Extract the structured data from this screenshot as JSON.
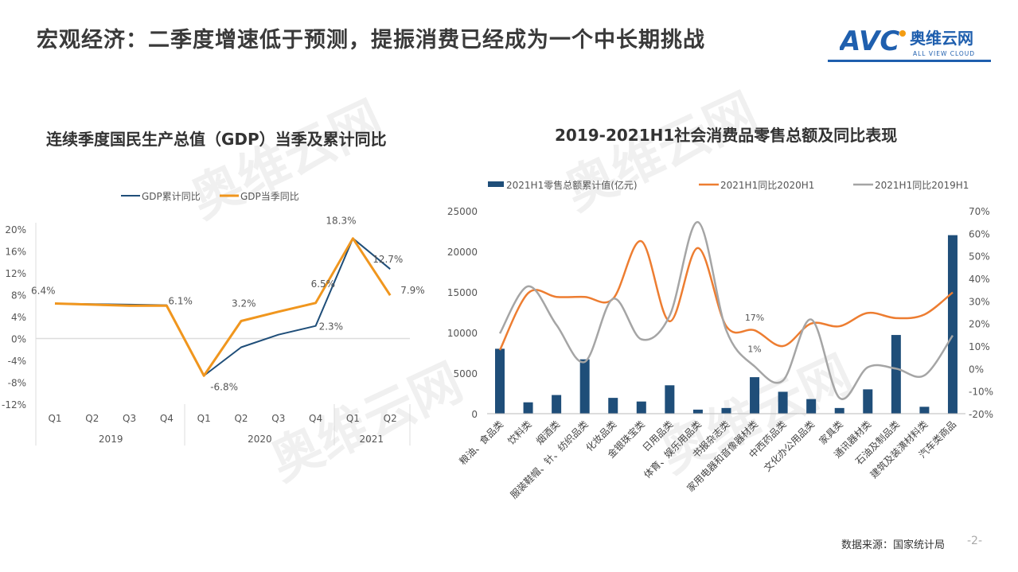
{
  "header": {
    "title": "宏观经济：二季度增速低于预测，提振消费已经成为一个中长期挑战",
    "logo_mark": "AVC",
    "logo_cn": "奥维云网",
    "logo_en": "ALL VIEW CLOUD"
  },
  "footer": {
    "source": "数据来源：国家统计局",
    "page": "-2-"
  },
  "colors": {
    "navy": "#1f4e79",
    "orange_gdp": "#f0961e",
    "orange_line": "#ed7d31",
    "gray_line": "#a5a5a5",
    "brand_blue": "#1f5fae"
  },
  "chart_data": [
    {
      "type": "line",
      "title": "连续季度国民生产总值（GDP）当季及累计同比",
      "categories": [
        "Q1",
        "Q2",
        "Q3",
        "Q4",
        "Q1",
        "Q2",
        "Q3",
        "Q4",
        "Q1",
        "Q2"
      ],
      "groups": [
        {
          "label": "2019",
          "span": 4
        },
        {
          "label": "2020",
          "span": 4
        },
        {
          "label": "2021",
          "span": 2
        }
      ],
      "y_ticks": [
        "20%",
        "16%",
        "12%",
        "8%",
        "4%",
        "0%",
        "-4%",
        "-8%",
        "-12%"
      ],
      "ylim": [
        -12,
        20
      ],
      "legend": "top",
      "series": [
        {
          "name": "GDP累计同比",
          "values": [
            6.4,
            6.3,
            6.2,
            6.1,
            -6.8,
            -1.6,
            0.7,
            2.3,
            18.3,
            12.7
          ]
        },
        {
          "name": "GDP当季同比",
          "values": [
            6.4,
            6.2,
            6.0,
            6.0,
            -6.8,
            3.2,
            4.9,
            6.5,
            18.3,
            7.9
          ]
        }
      ],
      "data_labels": [
        {
          "index": 0,
          "text": "6.4%"
        },
        {
          "index": 3,
          "text": "6.1%"
        },
        {
          "index": 4,
          "text": "-6.8%"
        },
        {
          "index": 5,
          "text": "3.2%"
        },
        {
          "index": 7,
          "text": "6.5%"
        },
        {
          "index": 7,
          "text": "2.3%"
        },
        {
          "index": 8,
          "text": "18.3%"
        },
        {
          "index": 9,
          "text": "12.7%"
        },
        {
          "index": 9,
          "text": "7.9%"
        }
      ]
    },
    {
      "type": "bar+line",
      "title": "2019-2021H1社会消费品零售总额及同比表现",
      "categories": [
        "粮油、食品类",
        "饮料类",
        "烟酒类",
        "服装鞋帽、针、纺织品类",
        "化妆品类",
        "金银珠宝类",
        "日用品类",
        "体育、娱乐用品类",
        "书报杂志类",
        "家用电器和音像器材类",
        "中西药品类",
        "文化办公用品类",
        "家具类",
        "通讯器材类",
        "石油及制品类",
        "建筑及装潢材料类",
        "汽车类商品"
      ],
      "y_ticks": [
        "25000",
        "20000",
        "15000",
        "10000",
        "5000",
        "0"
      ],
      "y2_ticks": [
        "70%",
        "60%",
        "50%",
        "40%",
        "30%",
        "20%",
        "10%",
        "0%",
        "-10%",
        "-20%"
      ],
      "ylim": [
        0,
        25000
      ],
      "y2lim": [
        -20,
        70
      ],
      "legend": "top",
      "series": [
        {
          "name": "2021H1零售总额累计值(亿元)",
          "kind": "bar",
          "values": [
            8000,
            1400,
            2300,
            6700,
            1950,
            1500,
            3500,
            500,
            700,
            4500,
            2700,
            1800,
            700,
            3000,
            9700,
            850,
            22000
          ]
        },
        {
          "name": "2021H1同比2020H1",
          "kind": "line",
          "values": [
            8.2,
            33.5,
            31.8,
            31.8,
            31,
            56.5,
            21,
            53.5,
            18.8,
            17,
            10,
            20,
            18.8,
            24.7,
            22.4,
            24,
            33.8
          ]
        },
        {
          "name": "2021H1同比2019H1",
          "kind": "line",
          "values": [
            15.6,
            36.5,
            19.4,
            3,
            31,
            13,
            23.5,
            65,
            17,
            1,
            -5.3,
            21.8,
            -13,
            0.6,
            0,
            -3,
            14.7
          ]
        }
      ],
      "annotations": [
        {
          "series": 1,
          "index": 9,
          "text": "17%"
        },
        {
          "series": 2,
          "index": 9,
          "text": "1%"
        }
      ]
    }
  ]
}
